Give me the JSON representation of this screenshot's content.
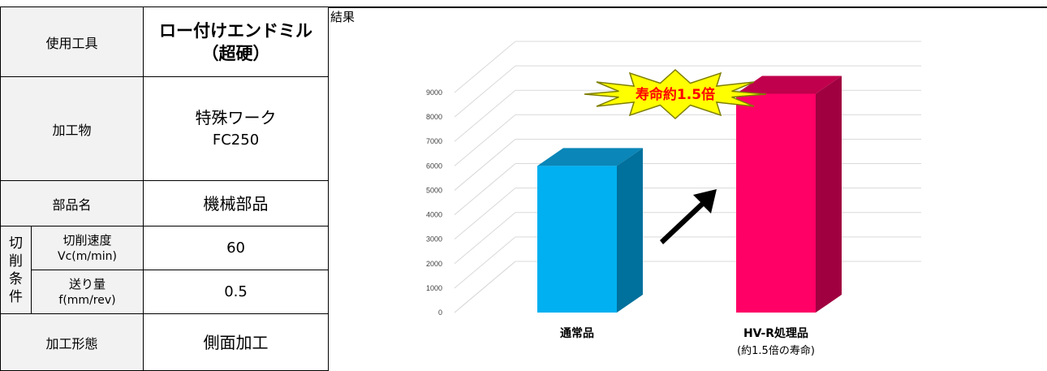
{
  "table": {
    "tool_label": "使用工具",
    "tool_value_line1": "ロー付けエンドミル",
    "tool_value_line2": "（超硬）",
    "work_label": "加工物",
    "work_value_line1": "特殊ワーク",
    "work_value_line2": "FC250",
    "part_label": "部品名",
    "part_value": "機械部品",
    "cond_group": [
      "切",
      "削",
      "条",
      "件"
    ],
    "speed_label": "切削速度",
    "speed_unit": "Vc(m/min)",
    "speed_value": "60",
    "feed_label": "送り量",
    "feed_unit": "f(mm/rev)",
    "feed_value": "0.5",
    "form_label": "加工形態",
    "form_value": "側面加工"
  },
  "result_title": "結果",
  "chart_data": {
    "type": "bar",
    "categories": [
      "通常品",
      "HV-R処理品"
    ],
    "category_sublabels": [
      "",
      "(約1.5倍の寿命)"
    ],
    "values": [
      6000,
      8950
    ],
    "ylim": [
      0,
      9000
    ],
    "yticks": [
      "0",
      "1000",
      "2000",
      "3000",
      "4000",
      "5000",
      "6000",
      "7000",
      "8000",
      "9000"
    ],
    "grid": true,
    "annotation": "寿命約1.5倍",
    "colors": {
      "bar1_front": "#00b0f0",
      "bar1_top": "#0a86b8",
      "bar1_side": "#00709c",
      "bar2_front": "#ff0066",
      "bar2_top": "#c0004c",
      "bar2_side": "#a00040",
      "burst_fill": "#ffff00",
      "burst_stroke": "#7f7f00",
      "arrow": "#000000"
    }
  }
}
